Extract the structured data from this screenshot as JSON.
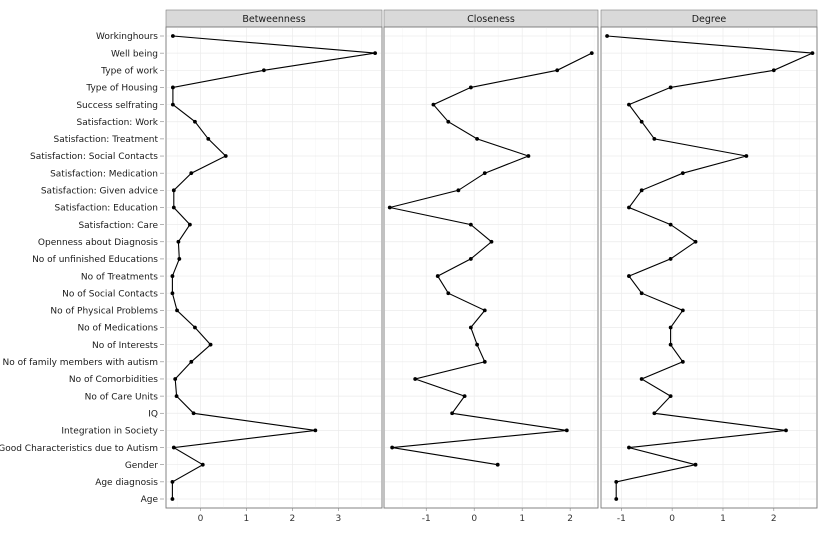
{
  "chart_data": {
    "type": "line",
    "categories": [
      "Workinghours",
      "Well being",
      "Type of work",
      "Type of Housing",
      "Success selfrating",
      "Satisfaction: Work",
      "Satisfaction: Treatment",
      "Satisfaction: Social Contacts",
      "Satisfaction: Medication",
      "Satisfaction: Given advice",
      "Satisfaction: Education",
      "Satisfaction: Care",
      "Openness about Diagnosis",
      "No of unfinished Educations",
      "No of Treatments",
      "No of Social Contacts",
      "No of Physical Problems",
      "No of Medications",
      "No of Interests",
      "No of family members with autism",
      "No of Comorbidities",
      "No of Care Units",
      "IQ",
      "Integration in Society",
      "Good Characteristics due to Autism",
      "Gender",
      "Age diagnosis",
      "Age"
    ],
    "grid": true,
    "legend": "none",
    "panels": [
      {
        "title": "Betweenness",
        "xlim": [
          -0.75,
          3.95
        ],
        "xticks": [
          0,
          1,
          2,
          3
        ],
        "xtick_labels": [
          "0",
          "1",
          "2",
          "3"
        ],
        "values": [
          -0.6,
          3.8,
          1.38,
          -0.6,
          -0.6,
          -0.12,
          0.17,
          0.55,
          -0.2,
          -0.58,
          -0.58,
          -0.23,
          -0.48,
          -0.46,
          -0.61,
          -0.61,
          -0.51,
          -0.12,
          0.22,
          -0.2,
          -0.55,
          -0.52,
          -0.15,
          2.5,
          -0.58,
          0.05,
          -0.61,
          -0.61
        ]
      },
      {
        "title": "Closeness",
        "xlim": [
          -1.88,
          2.58
        ],
        "xticks": [
          -1,
          0,
          1,
          2
        ],
        "xtick_labels": [
          "-1",
          "0",
          "1",
          "2"
        ],
        "values": [
          null,
          2.45,
          1.73,
          -0.07,
          -0.85,
          -0.54,
          0.06,
          1.13,
          0.22,
          -0.33,
          -1.76,
          -0.07,
          0.36,
          -0.07,
          -0.76,
          -0.54,
          0.22,
          -0.07,
          0.06,
          0.22,
          -1.23,
          -0.2,
          -0.46,
          1.93,
          -1.71,
          0.49,
          null,
          null
        ]
      },
      {
        "title": "Degree",
        "xlim": [
          -1.4,
          2.85
        ],
        "xticks": [
          -1,
          0,
          1,
          2
        ],
        "xtick_labels": [
          "-1",
          "0",
          "1",
          "2"
        ],
        "values": [
          -1.28,
          2.76,
          2.0,
          -0.03,
          -0.85,
          -0.6,
          -0.35,
          1.46,
          0.21,
          -0.6,
          -0.85,
          -0.03,
          0.46,
          -0.03,
          -0.85,
          -0.6,
          0.21,
          -0.03,
          -0.03,
          0.21,
          -0.6,
          -0.03,
          -0.35,
          2.24,
          -0.85,
          0.46,
          -1.1,
          -1.1
        ]
      }
    ]
  }
}
